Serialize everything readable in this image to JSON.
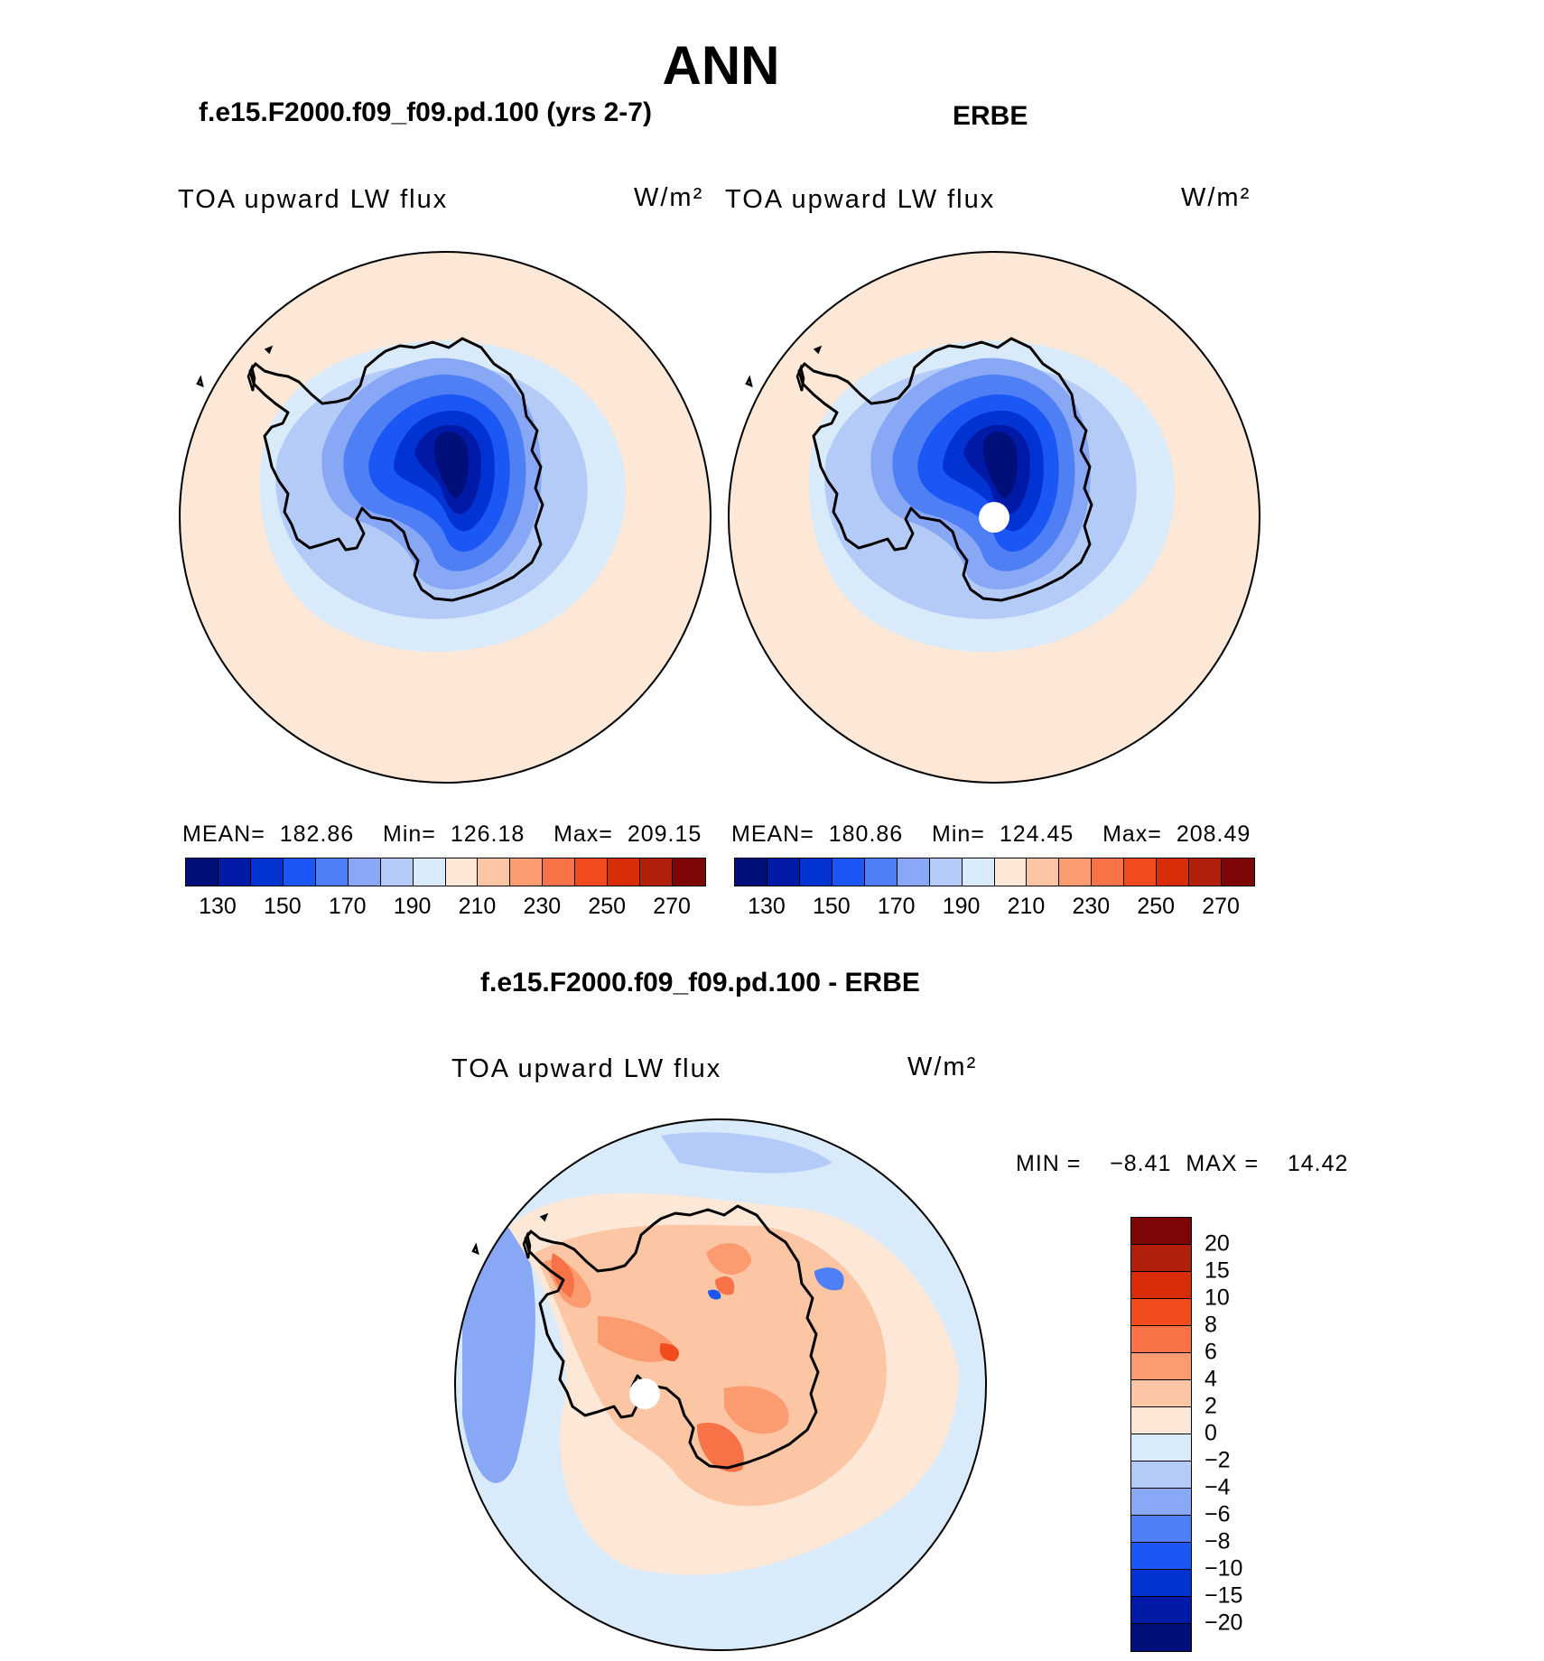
{
  "title": "ANN",
  "panels": {
    "model": {
      "heading": "f.e15.F2000.f09_f09.pd.100 (yrs 2-7)",
      "variable": "TOA upward LW flux",
      "units": "W/m²",
      "stats": {
        "mean_label": "MEAN=",
        "mean": "182.86",
        "min_label": "Min=",
        "min": "126.18",
        "max_label": "Max=",
        "max": "209.15"
      }
    },
    "obs": {
      "heading": "ERBE",
      "variable": "TOA upward LW flux",
      "units": "W/m²",
      "stats": {
        "mean_label": "MEAN=",
        "mean": "180.86",
        "min_label": "Min=",
        "min": "124.45",
        "max_label": "Max=",
        "max": "208.49"
      }
    },
    "diff": {
      "heading": "f.e15.F2000.f09_f09.pd.100 - ERBE",
      "variable": "TOA upward LW flux",
      "units": "W/m²",
      "minmax": {
        "min_label": "MIN =",
        "min": "−8.41",
        "max_label": "MAX =",
        "max": "14.42"
      }
    }
  },
  "chart_data": [
    {
      "type": "heatmap",
      "projection": "south polar stereographic",
      "title": "TOA upward LW flux (f.e15.F2000.f09_f09.pd.100, yrs 2-7)",
      "units": "W/m²",
      "summary": {
        "mean": 182.86,
        "min": 126.18,
        "max": 209.15
      },
      "colorbar": {
        "levels": [
          130,
          140,
          150,
          160,
          170,
          180,
          190,
          200,
          210,
          220,
          230,
          240,
          250,
          260,
          270
        ],
        "tick_labels": [
          "130",
          "150",
          "170",
          "190",
          "210",
          "230",
          "250",
          "270"
        ],
        "colors": [
          "#000f7a",
          "#0019a6",
          "#0033d1",
          "#1a57f5",
          "#4f7ff5",
          "#88a8f5",
          "#b4cbf7",
          "#d9ebfb",
          "#fde7d6",
          "#fcc6a4",
          "#fb9b6f",
          "#f77247",
          "#f24b1e",
          "#d92d0a",
          "#b0200a",
          "#7d0606"
        ]
      },
      "contour_fields": [
        {
          "min_Wm2": 200,
          "max_Wm2": 210
        },
        {
          "min_Wm2": 190,
          "max_Wm2": 200
        },
        {
          "min_Wm2": 180,
          "max_Wm2": 190
        },
        {
          "min_Wm2": 170,
          "max_Wm2": 180
        },
        {
          "min_Wm2": 160,
          "max_Wm2": 170
        },
        {
          "min_Wm2": 150,
          "max_Wm2": 160
        },
        {
          "min_Wm2": 140,
          "max_Wm2": 150
        },
        {
          "min_Wm2": 130,
          "max_Wm2": 140
        },
        {
          "min_Wm2": 120,
          "max_Wm2": 130
        }
      ]
    },
    {
      "type": "heatmap",
      "projection": "south polar stereographic",
      "title": "TOA upward LW flux (ERBE)",
      "units": "W/m²",
      "summary": {
        "mean": 180.86,
        "min": 124.45,
        "max": 208.49
      },
      "colorbar": {
        "levels": [
          130,
          140,
          150,
          160,
          170,
          180,
          190,
          200,
          210,
          220,
          230,
          240,
          250,
          260,
          270
        ],
        "tick_labels": [
          "130",
          "150",
          "170",
          "190",
          "210",
          "230",
          "250",
          "270"
        ],
        "colors": [
          "#000f7a",
          "#0019a6",
          "#0033d1",
          "#1a57f5",
          "#4f7ff5",
          "#88a8f5",
          "#b4cbf7",
          "#d9ebfb",
          "#fde7d6",
          "#fcc6a4",
          "#fb9b6f",
          "#f77247",
          "#f24b1e",
          "#d92d0a",
          "#b0200a",
          "#7d0606"
        ]
      },
      "contour_fields": [
        {
          "min_Wm2": 200,
          "max_Wm2": 210
        },
        {
          "min_Wm2": 190,
          "max_Wm2": 200
        },
        {
          "min_Wm2": 180,
          "max_Wm2": 190
        },
        {
          "min_Wm2": 170,
          "max_Wm2": 180
        },
        {
          "min_Wm2": 160,
          "max_Wm2": 170
        },
        {
          "min_Wm2": 150,
          "max_Wm2": 160
        },
        {
          "min_Wm2": 140,
          "max_Wm2": 150
        },
        {
          "min_Wm2": 130,
          "max_Wm2": 140
        },
        {
          "min_Wm2": 120,
          "max_Wm2": 130
        }
      ],
      "missing_data_at_pole": true
    },
    {
      "type": "heatmap",
      "projection": "south polar stereographic",
      "title": "TOA upward LW flux difference (f.e15.F2000.f09_f09.pd.100 - ERBE)",
      "units": "W/m²",
      "summary": {
        "min": -8.41,
        "max": 14.42
      },
      "colorbar": {
        "levels": [
          -20,
          -15,
          -10,
          -8,
          -6,
          -4,
          -2,
          0,
          2,
          4,
          6,
          8,
          10,
          15,
          20
        ],
        "tick_labels": [
          "20",
          "15",
          "10",
          "8",
          "6",
          "4",
          "2",
          "0",
          "−2",
          "−4",
          "−6",
          "−8",
          "−10",
          "−15",
          "−20"
        ],
        "colors_top_to_bottom": [
          "#7d0606",
          "#b0200a",
          "#d92d0a",
          "#f24b1e",
          "#f77247",
          "#fb9b6f",
          "#fcc6a4",
          "#fde7d6",
          "#d9ebfb",
          "#b4cbf7",
          "#88a8f5",
          "#4f7ff5",
          "#1a57f5",
          "#0033d1",
          "#0019a6",
          "#000f7a"
        ]
      },
      "contour_fields": [
        {
          "min_Wm2": -2,
          "max_Wm2": 0
        },
        {
          "min_Wm2": -6,
          "max_Wm2": -4
        },
        {
          "min_Wm2": -4,
          "max_Wm2": -2
        },
        {
          "min_Wm2": 0,
          "max_Wm2": 2
        },
        {
          "min_Wm2": 2,
          "max_Wm2": 4
        },
        {
          "min_Wm2": 4,
          "max_Wm2": 6
        },
        {
          "min_Wm2": 6,
          "max_Wm2": 8
        },
        {
          "min_Wm2": 8,
          "max_Wm2": 10
        },
        {
          "min_Wm2": -8,
          "max_Wm2": -6
        },
        {
          "min_Wm2": -10,
          "max_Wm2": -8
        }
      ],
      "missing_data_at_pole": true
    }
  ]
}
